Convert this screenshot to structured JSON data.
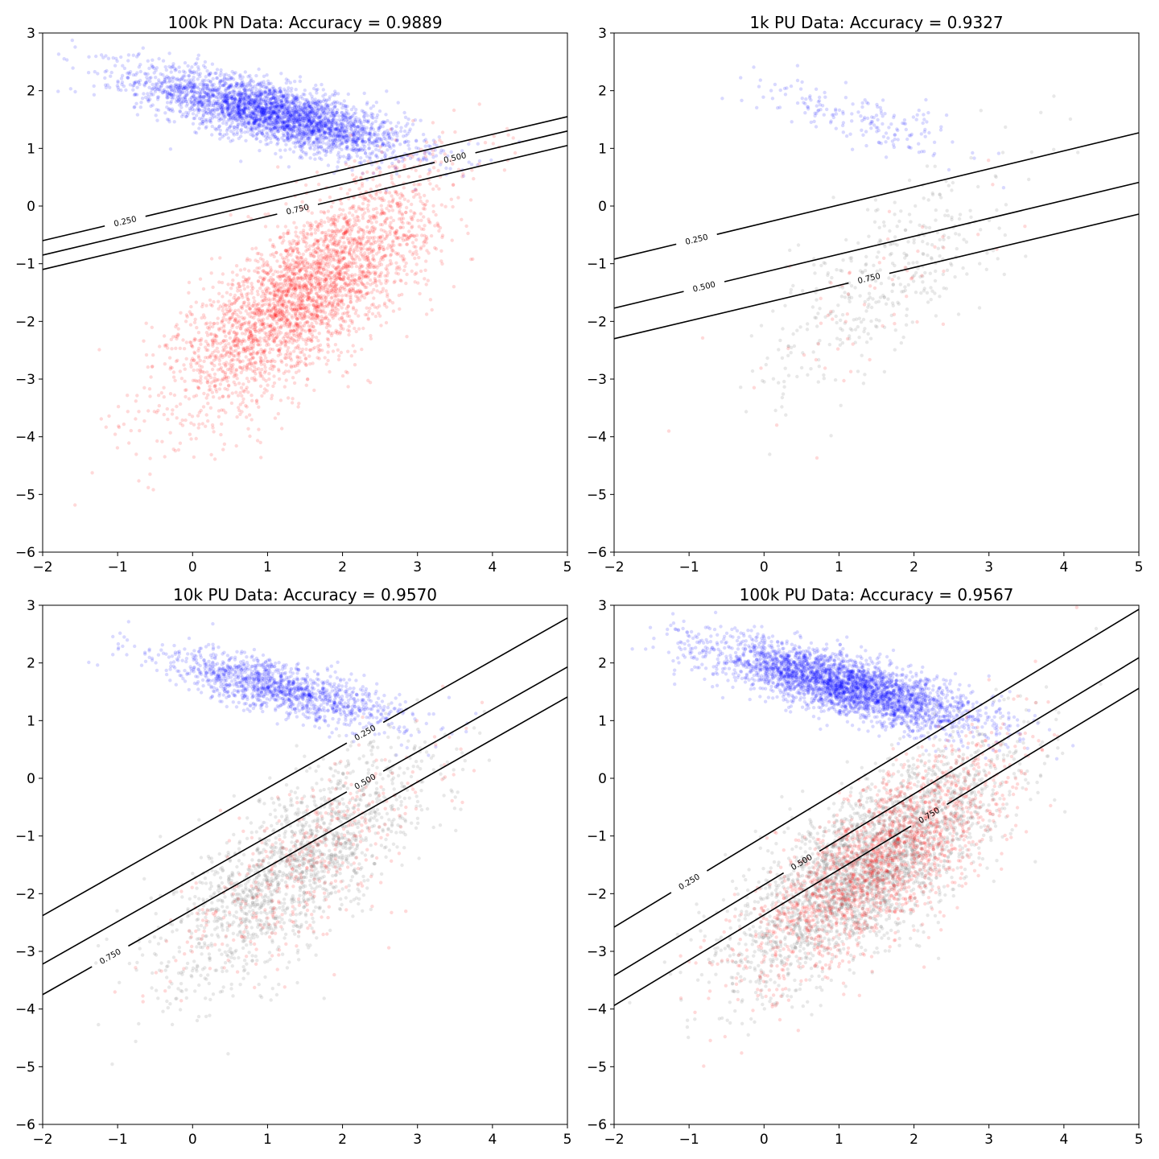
{
  "chart_data": [
    {
      "type": "scatter",
      "title": "100k PN Data: Accuracy = 0.9889",
      "xlim": [
        -2,
        5
      ],
      "ylim": [
        -6,
        3
      ],
      "xticks": [
        -2,
        -1,
        0,
        1,
        2,
        3,
        4,
        5
      ],
      "yticks": [
        -6,
        -5,
        -4,
        -3,
        -2,
        -1,
        0,
        1,
        2,
        3
      ],
      "grid": false,
      "series": [
        {
          "color": "#0000ff",
          "mean": [
            1.1,
            1.6
          ],
          "std": [
            0.9,
            0.38
          ],
          "corr": -0.75,
          "n": 3200
        },
        {
          "color": "#ff0000",
          "mean": [
            1.5,
            -1.5
          ],
          "std": [
            0.85,
            1.0
          ],
          "corr": 0.75,
          "n": 3200
        }
      ],
      "contours": [
        {
          "label": "0.250",
          "from": [
            -2,
            -0.6
          ],
          "to": [
            5,
            1.55
          ],
          "label_x": -0.9
        },
        {
          "label": "0.500",
          "from": [
            -2,
            -0.85
          ],
          "to": [
            5,
            1.3
          ],
          "label_x": 3.5
        },
        {
          "label": "0.750",
          "from": [
            -2,
            -1.1
          ],
          "to": [
            5,
            1.05
          ],
          "label_x": 1.4
        }
      ]
    },
    {
      "type": "scatter",
      "title": "1k PU Data: Accuracy = 0.9327",
      "xlim": [
        -2,
        5
      ],
      "ylim": [
        -6,
        3
      ],
      "xticks": [
        -2,
        -1,
        0,
        1,
        2,
        3,
        4,
        5
      ],
      "yticks": [
        -6,
        -5,
        -4,
        -3,
        -2,
        -1,
        0,
        1,
        2,
        3
      ],
      "grid": false,
      "series": [
        {
          "color": "#0000ff",
          "mean": [
            1.3,
            1.5
          ],
          "std": [
            0.7,
            0.3
          ],
          "corr": -0.7,
          "n": 180
        },
        {
          "color": "#808080",
          "mean": [
            1.6,
            -1.3
          ],
          "std": [
            0.8,
            0.95
          ],
          "corr": 0.7,
          "n": 380
        },
        {
          "color": "#ff0000",
          "mean": [
            1.5,
            -1.5
          ],
          "std": [
            0.85,
            1.0
          ],
          "corr": 0.75,
          "n": 60
        }
      ],
      "contours": [
        {
          "label": "0.250",
          "from": [
            -2,
            -0.92
          ],
          "to": [
            5,
            1.27
          ],
          "label_x": -0.9
        },
        {
          "label": "0.500",
          "from": [
            -2,
            -1.77
          ],
          "to": [
            5,
            0.41
          ],
          "label_x": -0.8
        },
        {
          "label": "0.750",
          "from": [
            -2,
            -2.3
          ],
          "to": [
            5,
            -0.14
          ],
          "label_x": 1.4
        }
      ]
    },
    {
      "type": "scatter",
      "title": "10k PU Data: Accuracy = 0.9570",
      "xlim": [
        -2,
        5
      ],
      "ylim": [
        -6,
        3
      ],
      "xticks": [
        -2,
        -1,
        0,
        1,
        2,
        3,
        4,
        5
      ],
      "yticks": [
        -6,
        -5,
        -4,
        -3,
        -2,
        -1,
        0,
        1,
        2,
        3
      ],
      "grid": false,
      "series": [
        {
          "color": "#0000ff",
          "mean": [
            1.2,
            1.55
          ],
          "std": [
            0.8,
            0.33
          ],
          "corr": -0.75,
          "n": 1300
        },
        {
          "color": "#808080",
          "mean": [
            1.4,
            -1.5
          ],
          "std": [
            0.85,
            1.0
          ],
          "corr": 0.75,
          "n": 1600
        },
        {
          "color": "#ff0000",
          "mean": [
            1.5,
            -1.5
          ],
          "std": [
            0.85,
            1.0
          ],
          "corr": 0.75,
          "n": 400
        }
      ],
      "contours": [
        {
          "label": "0.250",
          "from": [
            -2,
            -2.38
          ],
          "to": [
            5,
            2.78
          ],
          "label_x": 2.3
        },
        {
          "label": "0.500",
          "from": [
            -2,
            -3.22
          ],
          "to": [
            5,
            1.93
          ],
          "label_x": 2.3
        },
        {
          "label": "0.750",
          "from": [
            -2,
            -3.75
          ],
          "to": [
            5,
            1.41
          ],
          "label_x": -1.1
        }
      ]
    },
    {
      "type": "scatter",
      "title": "100k PU Data: Accuracy = 0.9567",
      "xlim": [
        -2,
        5
      ],
      "ylim": [
        -6,
        3
      ],
      "xticks": [
        -2,
        -1,
        0,
        1,
        2,
        3,
        4,
        5
      ],
      "yticks": [
        -6,
        -5,
        -4,
        -3,
        -2,
        -1,
        0,
        1,
        2,
        3
      ],
      "grid": false,
      "series": [
        {
          "color": "#0000ff",
          "mean": [
            1.1,
            1.6
          ],
          "std": [
            0.9,
            0.38
          ],
          "corr": -0.75,
          "n": 3200
        },
        {
          "color": "#808080",
          "mean": [
            1.4,
            -1.5
          ],
          "std": [
            0.9,
            1.0
          ],
          "corr": 0.75,
          "n": 2800
        },
        {
          "color": "#ff0000",
          "mean": [
            1.5,
            -1.5
          ],
          "std": [
            0.85,
            1.0
          ],
          "corr": 0.75,
          "n": 1800
        }
      ],
      "contours": [
        {
          "label": "0.250",
          "from": [
            -2,
            -2.58
          ],
          "to": [
            5,
            2.93
          ],
          "label_x": -1.0
        },
        {
          "label": "0.500",
          "from": [
            -2,
            -3.42
          ],
          "to": [
            5,
            2.09
          ],
          "label_x": 0.5
        },
        {
          "label": "0.750",
          "from": [
            -2,
            -3.94
          ],
          "to": [
            5,
            1.56
          ],
          "label_x": 2.2
        }
      ]
    }
  ]
}
